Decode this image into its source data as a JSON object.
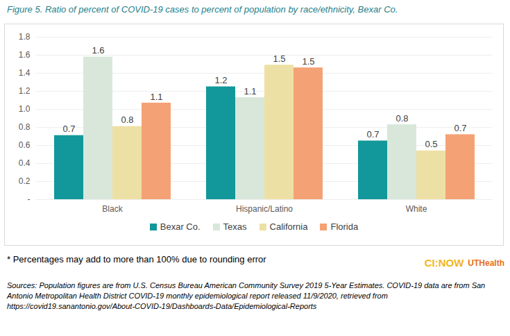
{
  "chart_data": {
    "type": "bar",
    "title": "Figure 5. Ratio of percent of COVID-19 cases to percent of population by race/ethnicity, Bexar Co.",
    "categories": [
      "Black",
      "Hispanic/Latino",
      "White"
    ],
    "series": [
      {
        "name": "Bexar Co.",
        "color": "#12989a",
        "values": [
          0.71,
          1.25,
          0.65
        ],
        "value_labels": [
          "0.7",
          "1.2",
          "0.7"
        ]
      },
      {
        "name": "Texas",
        "color": "#d8e7da",
        "values": [
          1.58,
          1.13,
          0.83
        ],
        "value_labels": [
          "1.6",
          "1.1",
          "0.8"
        ]
      },
      {
        "name": "California",
        "color": "#ede0a4",
        "values": [
          0.81,
          1.49,
          0.54
        ],
        "value_labels": [
          "0.8",
          "1.5",
          "0.5"
        ]
      },
      {
        "name": "Florida",
        "color": "#f4a275",
        "values": [
          1.07,
          1.46,
          0.72
        ],
        "value_labels": [
          "1.1",
          "1.5",
          "0.7"
        ]
      }
    ],
    "ylim": [
      0,
      1.8
    ],
    "yticks": [
      {
        "value": 0,
        "label": "-"
      },
      0.2,
      0.4,
      0.6,
      0.8,
      {
        "value": 1,
        "label": "1.0"
      },
      1.2,
      1.4,
      1.6,
      1.8
    ],
    "grid": true,
    "legend": "bottom",
    "data_labels": true,
    "annotations": [
      "* Percentages may add to more than 100% due to rounding error",
      "CI:NOW",
      "UTHealth",
      "Sources: Population figures are from U.S. Census Bureau American Community Survey 2019 5-Year Estimates. COVID-19 data are from San Antonio Metropolitan Health District COVID-19 monthly epidemiological report released 11/9/2020, retrieved from https://covid19.sanantonio.gov/About-COVID-19/Dashboards-Data/Epidemiological-Reports"
    ]
  }
}
